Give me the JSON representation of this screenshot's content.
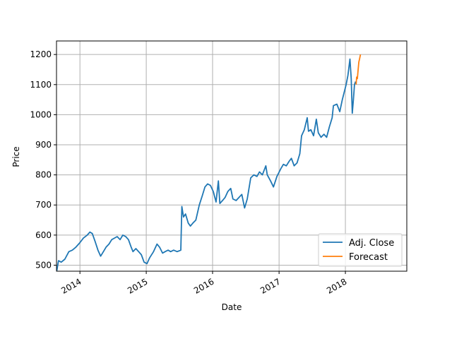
{
  "chart_data": {
    "type": "line",
    "title": "",
    "xlabel": "Date",
    "ylabel": "Price",
    "xlim": [
      "2013-08-25",
      "2018-12-05"
    ],
    "ylim": [
      480,
      1245
    ],
    "x_ticks": [
      "2014-01-01",
      "2015-01-01",
      "2016-01-01",
      "2017-01-01",
      "2018-01-01"
    ],
    "x_tick_labels": [
      "2014",
      "2015",
      "2016",
      "2017",
      "2018"
    ],
    "y_ticks": [
      500,
      600,
      700,
      800,
      900,
      1000,
      1100,
      1200
    ],
    "y_tick_labels": [
      "500",
      "600",
      "700",
      "800",
      "900",
      "1000",
      "1100",
      "1200"
    ],
    "grid": true,
    "legend_position": "lower-right",
    "colors": {
      "adj_close": "#1f77b4",
      "forecast": "#ff7f0e"
    },
    "series": [
      {
        "name": "Adj. Close",
        "points": [
          [
            "2013-08-27",
            482
          ],
          [
            "2013-09-05",
            515
          ],
          [
            "2013-09-20",
            510
          ],
          [
            "2013-10-10",
            520
          ],
          [
            "2013-11-01",
            545
          ],
          [
            "2013-11-20",
            550
          ],
          [
            "2013-12-10",
            560
          ],
          [
            "2014-01-01",
            575
          ],
          [
            "2014-01-20",
            590
          ],
          [
            "2014-02-10",
            600
          ],
          [
            "2014-02-25",
            610
          ],
          [
            "2014-03-10",
            605
          ],
          [
            "2014-03-25",
            580
          ],
          [
            "2014-04-10",
            550
          ],
          [
            "2014-04-25",
            530
          ],
          [
            "2014-05-10",
            545
          ],
          [
            "2014-05-25",
            560
          ],
          [
            "2014-06-10",
            570
          ],
          [
            "2014-06-25",
            585
          ],
          [
            "2014-07-10",
            590
          ],
          [
            "2014-07-25",
            595
          ],
          [
            "2014-08-10",
            585
          ],
          [
            "2014-08-25",
            600
          ],
          [
            "2014-09-10",
            595
          ],
          [
            "2014-09-25",
            585
          ],
          [
            "2014-10-10",
            560
          ],
          [
            "2014-10-20",
            545
          ],
          [
            "2014-11-05",
            555
          ],
          [
            "2014-11-20",
            545
          ],
          [
            "2014-12-05",
            535
          ],
          [
            "2014-12-20",
            510
          ],
          [
            "2015-01-05",
            505
          ],
          [
            "2015-01-20",
            525
          ],
          [
            "2015-02-10",
            545
          ],
          [
            "2015-03-01",
            570
          ],
          [
            "2015-03-15",
            560
          ],
          [
            "2015-04-01",
            540
          ],
          [
            "2015-04-15",
            545
          ],
          [
            "2015-05-01",
            550
          ],
          [
            "2015-05-15",
            545
          ],
          [
            "2015-06-01",
            550
          ],
          [
            "2015-06-20",
            545
          ],
          [
            "2015-07-10",
            550
          ],
          [
            "2015-07-16",
            695
          ],
          [
            "2015-07-25",
            660
          ],
          [
            "2015-08-05",
            670
          ],
          [
            "2015-08-20",
            640
          ],
          [
            "2015-09-01",
            630
          ],
          [
            "2015-09-15",
            640
          ],
          [
            "2015-10-01",
            650
          ],
          [
            "2015-10-20",
            700
          ],
          [
            "2015-11-05",
            730
          ],
          [
            "2015-11-20",
            760
          ],
          [
            "2015-12-05",
            770
          ],
          [
            "2015-12-20",
            765
          ],
          [
            "2016-01-05",
            745
          ],
          [
            "2016-01-20",
            710
          ],
          [
            "2016-02-02",
            780
          ],
          [
            "2016-02-10",
            705
          ],
          [
            "2016-02-25",
            715
          ],
          [
            "2016-03-10",
            725
          ],
          [
            "2016-03-25",
            745
          ],
          [
            "2016-04-10",
            755
          ],
          [
            "2016-04-22",
            720
          ],
          [
            "2016-05-10",
            715
          ],
          [
            "2016-05-25",
            725
          ],
          [
            "2016-06-10",
            735
          ],
          [
            "2016-06-25",
            690
          ],
          [
            "2016-07-10",
            720
          ],
          [
            "2016-07-29",
            790
          ],
          [
            "2016-08-15",
            800
          ],
          [
            "2016-09-01",
            795
          ],
          [
            "2016-09-15",
            810
          ],
          [
            "2016-10-01",
            800
          ],
          [
            "2016-10-20",
            830
          ],
          [
            "2016-10-28",
            800
          ],
          [
            "2016-11-15",
            780
          ],
          [
            "2016-12-01",
            760
          ],
          [
            "2016-12-20",
            795
          ],
          [
            "2017-01-10",
            820
          ],
          [
            "2017-01-25",
            835
          ],
          [
            "2017-02-10",
            830
          ],
          [
            "2017-02-25",
            845
          ],
          [
            "2017-03-10",
            855
          ],
          [
            "2017-03-25",
            830
          ],
          [
            "2017-04-10",
            840
          ],
          [
            "2017-04-25",
            870
          ],
          [
            "2017-05-05",
            930
          ],
          [
            "2017-05-20",
            950
          ],
          [
            "2017-06-05",
            990
          ],
          [
            "2017-06-12",
            945
          ],
          [
            "2017-06-25",
            950
          ],
          [
            "2017-07-10",
            930
          ],
          [
            "2017-07-25",
            985
          ],
          [
            "2017-08-05",
            940
          ],
          [
            "2017-08-20",
            925
          ],
          [
            "2017-09-05",
            935
          ],
          [
            "2017-09-20",
            925
          ],
          [
            "2017-10-05",
            960
          ],
          [
            "2017-10-20",
            990
          ],
          [
            "2017-10-27",
            1030
          ],
          [
            "2017-11-15",
            1035
          ],
          [
            "2017-12-01",
            1010
          ],
          [
            "2017-12-15",
            1050
          ],
          [
            "2018-01-05",
            1100
          ],
          [
            "2018-01-15",
            1130
          ],
          [
            "2018-01-26",
            1185
          ],
          [
            "2018-02-02",
            1120
          ],
          [
            "2018-02-08",
            1005
          ],
          [
            "2018-02-14",
            1050
          ],
          [
            "2018-02-20",
            1100
          ],
          [
            "2018-02-26",
            1110
          ]
        ]
      },
      {
        "name": "Forecast",
        "points": [
          [
            "2018-03-01",
            1100
          ],
          [
            "2018-03-04",
            1125
          ],
          [
            "2018-03-08",
            1120
          ],
          [
            "2018-03-12",
            1150
          ],
          [
            "2018-03-16",
            1175
          ],
          [
            "2018-03-20",
            1185
          ],
          [
            "2018-03-25",
            1200
          ]
        ]
      }
    ]
  }
}
